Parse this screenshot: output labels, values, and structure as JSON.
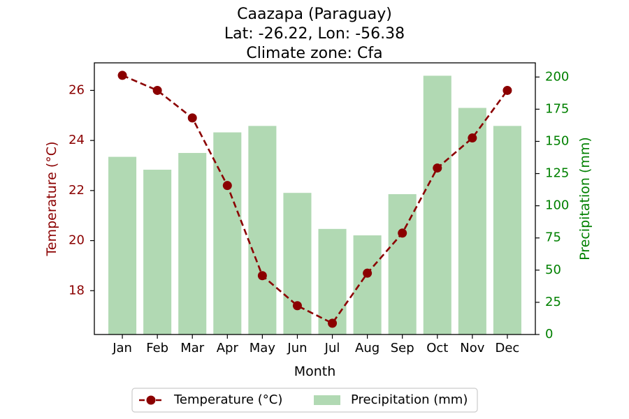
{
  "chart_data": {
    "type": "bar+line",
    "title_lines": [
      "Caazapa (Paraguay)",
      "Lat: -26.22, Lon: -56.38",
      "Climate zone: Cfa"
    ],
    "xlabel": "Month",
    "categories": [
      "Jan",
      "Feb",
      "Mar",
      "Apr",
      "May",
      "Jun",
      "Jul",
      "Aug",
      "Sep",
      "Oct",
      "Nov",
      "Dec"
    ],
    "temperature": {
      "name": "Temperature (°C)",
      "ylabel": "Temperature (°C)",
      "values": [
        26.6,
        26.0,
        24.9,
        22.2,
        18.6,
        17.4,
        16.7,
        18.7,
        20.3,
        22.9,
        24.1,
        26.0
      ],
      "ylim": [
        16.25,
        27.1
      ],
      "ticks": [
        "18",
        "20",
        "22",
        "24",
        "26"
      ],
      "color": "#8b0000"
    },
    "precipitation": {
      "name": "Precipitation (mm)",
      "ylabel": "Precipitation (mm)",
      "values": [
        138,
        128,
        141,
        157,
        162,
        110,
        82,
        77,
        109,
        201,
        176,
        162
      ],
      "ylim": [
        0,
        211
      ],
      "ticks": [
        "0",
        "25",
        "50",
        "75",
        "100",
        "125",
        "150",
        "175",
        "200"
      ],
      "color": "#b1d9b3",
      "axis_color": "#008000"
    },
    "legend_position": "bottom-center",
    "grid": false
  }
}
